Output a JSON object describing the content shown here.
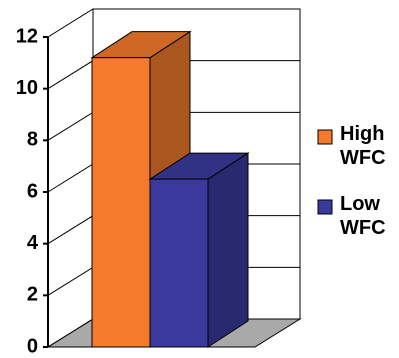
{
  "chart_data": {
    "type": "bar3d",
    "categories": [
      null
    ],
    "series": [
      {
        "name": "High WFC",
        "color": "#f47a2c",
        "values": [
          11.2
        ]
      },
      {
        "name": "Low WFC",
        "color": "#3a3a9e",
        "values": [
          6.5
        ]
      }
    ],
    "ylim": [
      0,
      12
    ],
    "yticks": [
      0,
      2,
      4,
      6,
      8,
      10,
      12
    ],
    "grid": true,
    "legend": "right"
  }
}
